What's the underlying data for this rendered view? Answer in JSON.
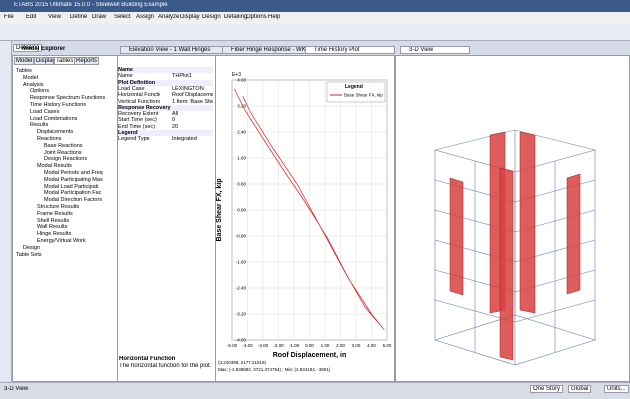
{
  "window": {
    "title": "ETABS 2015 Ultimate 15.0.0 - Steelwell Building Example"
  },
  "menu": [
    "File",
    "Edit",
    "View",
    "Define",
    "Draw",
    "Select",
    "Assign",
    "Analyze",
    "Display",
    "Design",
    "Detailing",
    "Options",
    "Help"
  ],
  "explorer": {
    "title": "Model Explorer",
    "side_tab": "Detailing",
    "tabs": [
      "Model",
      "Display",
      "Tables",
      "Reports"
    ],
    "tree": [
      "Tables",
      "Model",
      "Analysis",
      "Options",
      "Response Spectrum Functions",
      "Time History Functions",
      "Load Cases",
      "Load Combinations",
      "Results",
      "Displacements",
      "Reactions",
      "Base Reactions",
      "Joint Reactions",
      "Design Reactions",
      "Modal Results",
      "Modal Periods and Freq",
      "Modal Participating Mas",
      "Modal Load Participati",
      "Modal Participation Fac",
      "Modal Direction Factors",
      "Structure Results",
      "Frame Results",
      "Shell Results",
      "Wall Results",
      "Hinge Results",
      "Energy/Virtual Work",
      "Design",
      "Table Sets"
    ]
  },
  "doc_tabs": [
    "Elevation View - 1  Wall Hinges",
    "Fiber Hinge Response - WKH0.0 (...",
    "Time History Plot",
    "3-D View"
  ],
  "properties": {
    "rows": [
      [
        "Name",
        ""
      ],
      [
        "Name",
        "THPlot1"
      ],
      [
        "Plot Definition",
        ""
      ],
      [
        "Load Case",
        "LEXINGTON"
      ],
      [
        "Horizontal Function",
        "Roof Displacement"
      ],
      [
        "Vertical Functions",
        "1 Item: Base Shear F"
      ],
      [
        "Response Recovery",
        ""
      ],
      [
        "Recovery Extent",
        "All"
      ],
      [
        "Start Time (sec)",
        "0"
      ],
      [
        "End Time (sec)",
        "20"
      ],
      [
        "Legend",
        ""
      ],
      [
        "Legend Type",
        "Integrated"
      ]
    ],
    "help_title": "Horizontal Function",
    "help_text": "The horizontal function for the plot."
  },
  "plot": {
    "type": "line",
    "exponent": "E+3",
    "x_label": "Roof Displacement,  in",
    "y_label": "Base Shear FX,  kip",
    "legend_title": "Legend",
    "xlim": [
      -5,
      5
    ],
    "ylim": [
      -4,
      4
    ],
    "xticks": [
      {
        "value": -5,
        "label": "-5.00"
      },
      {
        "value": -4,
        "label": "-4.00"
      },
      {
        "value": -3,
        "label": "-3.00"
      },
      {
        "value": -2,
        "label": "-2.00"
      },
      {
        "value": -1,
        "label": "-1.00"
      },
      {
        "value": 0,
        "label": "0.00"
      },
      {
        "value": 1,
        "label": "1.00"
      },
      {
        "value": 2,
        "label": "2.00"
      },
      {
        "value": 3,
        "label": "3.00"
      },
      {
        "value": 4,
        "label": "4.00"
      },
      {
        "value": 5,
        "label": "5.00"
      }
    ],
    "yticks": [
      {
        "value": 4,
        "label": "4.00"
      },
      {
        "value": 3.2,
        "label": "3.20"
      },
      {
        "value": 2.4,
        "label": "2.40"
      },
      {
        "value": 1.6,
        "label": "1.60"
      },
      {
        "value": 0.8,
        "label": "0.80"
      },
      {
        "value": 0,
        "label": "0.00"
      },
      {
        "value": -0.8,
        "label": "-0.80"
      },
      {
        "value": -1.6,
        "label": "-1.60"
      },
      {
        "value": -2.4,
        "label": "-2.40"
      },
      {
        "value": -3.2,
        "label": "-3.20"
      },
      {
        "value": -4,
        "label": "-4.00"
      }
    ],
    "grid": true,
    "series": [
      {
        "name": "Base Shear FX, kip",
        "color": "#e02020",
        "x": [
          -4.84,
          -4.2,
          -3.0,
          -1.5,
          -0.5,
          0.3,
          1.2,
          2.4,
          3.6,
          4.83,
          4.0,
          2.5,
          0.8,
          -0.8,
          -2.5,
          -3.8,
          -4.3
        ],
        "values": [
          3.72,
          3.1,
          2.2,
          1.1,
          0.4,
          -0.2,
          -0.9,
          -2.0,
          -3.0,
          -3.69,
          -3.2,
          -2.1,
          -0.6,
          0.8,
          2.0,
          3.0,
          3.5
        ]
      }
    ],
    "cursor": "(3.240398, 2177.21519)",
    "extremes": "Max: (-4.839882, 3721.374754) ;  Min: (4.834184, -3691)"
  },
  "status": {
    "view": "3-D View",
    "story": "One Story",
    "coords": "Global",
    "units": "Units..."
  }
}
